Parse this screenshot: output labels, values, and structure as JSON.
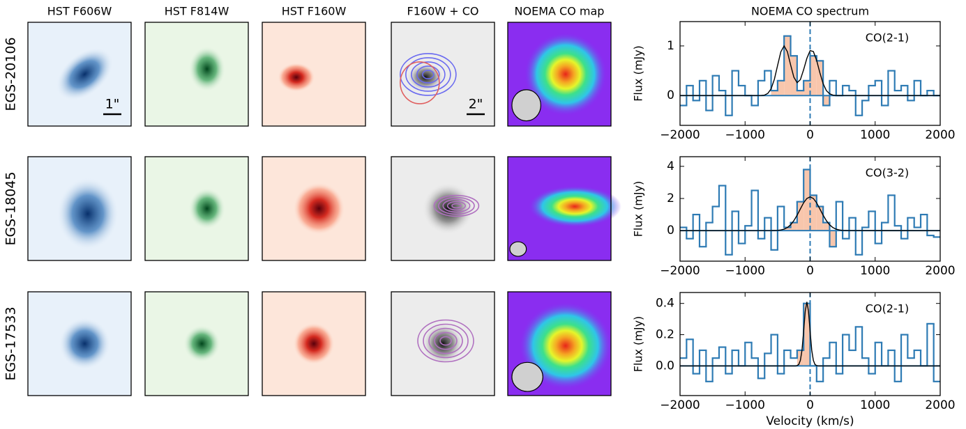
{
  "figure": {
    "column_titles": [
      "HST F606W",
      "HST F814W",
      "HST F160W",
      "F160W + CO",
      "NOEMA CO map"
    ],
    "row_labels": [
      "EGS-20106",
      "EGS-18045",
      "EGS-17533"
    ],
    "scale_bars": [
      "1\"",
      "2\""
    ]
  },
  "chart_data": [
    {
      "type": "line",
      "title": "NOEMA CO spectrum",
      "ylabel": "Flux (mJy)",
      "annotation": "CO(2-1)",
      "xlim": [
        -2000,
        2000
      ],
      "ylim": [
        -0.6,
        1.49
      ],
      "yticks": [
        0,
        1
      ],
      "vline": 0,
      "xticks": [
        {
          "value": -2000,
          "label": "−2000"
        },
        {
          "value": -1000,
          "label": "−1000"
        },
        0,
        1000,
        2000
      ],
      "spectrum": {
        "color": "#2e7bb4",
        "bins": [
          -2000,
          -1900,
          -1800,
          -1700,
          -1600,
          -1500,
          -1400,
          -1300,
          -1200,
          -1100,
          -1000,
          -900,
          -800,
          -700,
          -600,
          -500,
          -400,
          -300,
          -200,
          -100,
          0,
          100,
          200,
          300,
          400,
          500,
          600,
          700,
          800,
          900,
          1000,
          1100,
          1200,
          1300,
          1400,
          1500,
          1600,
          1700,
          1800,
          1900,
          2000
        ],
        "values": [
          -0.2,
          0.2,
          -0.1,
          0.3,
          -0.3,
          0.4,
          0.1,
          -0.4,
          0.5,
          0.2,
          0.0,
          -0.2,
          0.3,
          0.5,
          0.1,
          0.3,
          1.2,
          0.8,
          0.1,
          0.3,
          0.8,
          0.7,
          -0.2,
          0.3,
          0.0,
          0.2,
          0.1,
          -0.4,
          -0.1,
          0.2,
          0.3,
          -0.2,
          0.5,
          0.1,
          0.2,
          -0.1,
          0.3,
          0.0,
          0.1,
          0.0
        ]
      },
      "fit": {
        "color": "#000000",
        "x": [
          -2000,
          -800,
          -750,
          -700,
          -650,
          -600,
          -550,
          -500,
          -450,
          -400,
          -350,
          -300,
          -250,
          -200,
          -150,
          -100,
          -50,
          0,
          50,
          100,
          150,
          200,
          250,
          300,
          350,
          400,
          2000
        ],
        "values": [
          0,
          0,
          0.002,
          0.01,
          0.044,
          0.135,
          0.325,
          0.607,
          0.882,
          1.0,
          0.885,
          0.62,
          0.37,
          0.26,
          0.32,
          0.52,
          0.75,
          0.905,
          0.887,
          0.71,
          0.46,
          0.24,
          0.1,
          0.036,
          0.01,
          0,
          0
        ]
      }
    },
    {
      "type": "line",
      "ylabel": "Flux (mJy)",
      "annotation": "CO(3-2)",
      "xlim": [
        -2000,
        2000
      ],
      "ylim": [
        -1.9,
        4.6
      ],
      "yticks": [
        0,
        2,
        4
      ],
      "vline": 0,
      "xticks": [
        {
          "value": -2000,
          "label": "−2000"
        },
        {
          "value": -1000,
          "label": "−1000"
        },
        0,
        1000,
        2000
      ],
      "spectrum": {
        "color": "#2e7bb4",
        "bins": [
          -2000,
          -1900,
          -1800,
          -1700,
          -1600,
          -1500,
          -1400,
          -1300,
          -1200,
          -1100,
          -1000,
          -900,
          -800,
          -700,
          -600,
          -500,
          -400,
          -300,
          -200,
          -100,
          0,
          100,
          200,
          300,
          400,
          500,
          600,
          700,
          800,
          900,
          1000,
          1100,
          1200,
          1300,
          1400,
          1500,
          1600,
          1700,
          1800,
          1900,
          2000
        ],
        "values": [
          0.2,
          -0.5,
          1.0,
          -1.0,
          0.5,
          1.5,
          2.8,
          -1.5,
          1.2,
          -0.8,
          0.3,
          2.5,
          -0.5,
          0.8,
          -1.2,
          1.5,
          0.2,
          0.5,
          1.8,
          3.8,
          2.2,
          1.5,
          0.5,
          -1.0,
          1.8,
          -0.5,
          0.8,
          -1.5,
          0.2,
          1.2,
          -0.8,
          0.5,
          2.2,
          0.3,
          -0.5,
          0.8,
          0.2,
          1.0,
          -0.3,
          -0.4
        ]
      },
      "fit": {
        "color": "#000000",
        "x": [
          -2000,
          -600,
          -500,
          -450,
          -400,
          -350,
          -300,
          -250,
          -200,
          -150,
          -100,
          -50,
          0,
          50,
          100,
          150,
          200,
          250,
          300,
          350,
          400,
          450,
          500,
          600,
          2000
        ],
        "values": [
          0,
          0.002,
          0.016,
          0.04,
          0.09,
          0.19,
          0.36,
          0.62,
          0.96,
          1.35,
          1.73,
          2.0,
          2.1,
          2.0,
          1.73,
          1.35,
          0.96,
          0.62,
          0.36,
          0.19,
          0.09,
          0.04,
          0.016,
          0.002,
          0
        ]
      }
    },
    {
      "type": "line",
      "xlabel": "Velocity (km/s)",
      "ylabel": "Flux (mJy)",
      "annotation": "CO(2-1)",
      "xlim": [
        -2000,
        2000
      ],
      "ylim": [
        -0.19,
        0.47
      ],
      "yticks": [
        {
          "value": 0,
          "label": "0.0"
        },
        0.2,
        0.4
      ],
      "vline": 0,
      "xticks": [
        {
          "value": -2000,
          "label": "−2000"
        },
        {
          "value": -1000,
          "label": "−1000"
        },
        0,
        1000,
        2000
      ],
      "spectrum": {
        "color": "#2e7bb4",
        "bins": [
          -2000,
          -1900,
          -1800,
          -1700,
          -1600,
          -1500,
          -1400,
          -1300,
          -1200,
          -1100,
          -1000,
          -900,
          -800,
          -700,
          -600,
          -500,
          -400,
          -300,
          -200,
          -100,
          0,
          100,
          200,
          300,
          400,
          500,
          600,
          700,
          800,
          900,
          1000,
          1100,
          1200,
          1300,
          1400,
          1500,
          1600,
          1700,
          1800,
          1900,
          2000
        ],
        "values": [
          0.05,
          0.17,
          -0.05,
          0.1,
          -0.1,
          0.05,
          0.12,
          -0.05,
          0.1,
          0.0,
          0.15,
          0.05,
          -0.08,
          0.08,
          0.2,
          -0.05,
          0.1,
          0.05,
          0.1,
          0.4,
          0.0,
          -0.1,
          0.05,
          0.15,
          -0.05,
          0.2,
          0.1,
          0.25,
          0.05,
          -0.05,
          0.15,
          0.0,
          0.1,
          -0.1,
          0.2,
          0.05,
          0.1,
          0.0,
          0.27,
          -0.1
        ]
      },
      "fit": {
        "color": "#000000",
        "x": [
          -2000,
          -250,
          -225,
          -200,
          -175,
          -150,
          -125,
          -100,
          -75,
          -50,
          -25,
          0,
          25,
          50,
          75,
          100,
          125,
          150,
          2000
        ],
        "values": [
          0,
          0,
          0,
          0.002,
          0.009,
          0.035,
          0.1,
          0.22,
          0.35,
          0.41,
          0.35,
          0.22,
          0.1,
          0.035,
          0.009,
          0.002,
          0,
          0,
          0
        ]
      }
    }
  ]
}
